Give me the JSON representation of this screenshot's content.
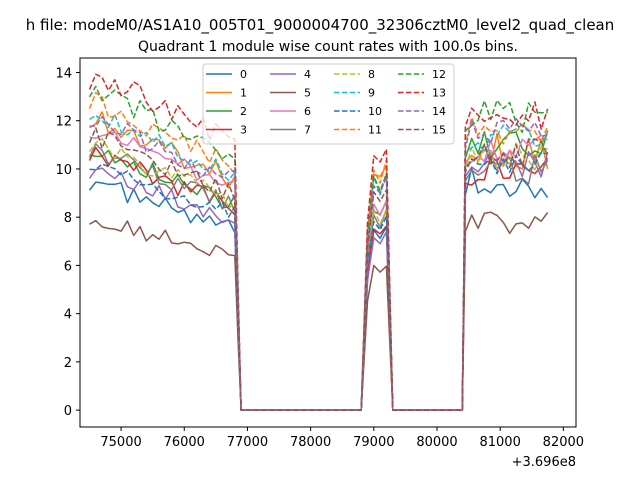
{
  "chart_data": {
    "type": "line",
    "suptitle": "h file: modeM0/AS1A10_005T01_9000004700_32306cztM0_level2_quad_clean",
    "title": "Quadrant 1 module wise count rates with 100.0s bins.",
    "xlabel": "",
    "ylabel": "",
    "x_offset_label": "+3.696e8",
    "xlim": [
      74350,
      82200
    ],
    "ylim": [
      -0.7,
      14.6
    ],
    "x_ticks": [
      75000,
      76000,
      77000,
      78000,
      79000,
      80000,
      81000,
      82000
    ],
    "x_tick_labels": [
      "75000",
      "76000",
      "77000",
      "78000",
      "79000",
      "80000",
      "81000",
      "82000"
    ],
    "y_ticks": [
      0,
      2,
      4,
      6,
      8,
      10,
      12,
      14
    ],
    "y_tick_labels": [
      "0",
      "2",
      "4",
      "6",
      "8",
      "10",
      "12",
      "14"
    ],
    "grid": false,
    "legend_position": "upper center",
    "legend_columns": 4,
    "segments": [
      [
        74500,
        76800
      ],
      [
        76900,
        78800
      ],
      [
        78850,
        79300
      ],
      [
        79400,
        80400
      ],
      [
        80450,
        81800
      ]
    ],
    "series": [
      {
        "name": "0",
        "color": "#1f77b4",
        "dash": "solid",
        "base": 7.8,
        "p2": 7.3,
        "p3": 9.4,
        "amp": 0.4
      },
      {
        "name": "1",
        "color": "#ff7f0e",
        "dash": "solid",
        "base": 10.0,
        "p2": 10.0,
        "p3": 10.8,
        "amp": 0.5
      },
      {
        "name": "2",
        "color": "#2ca02c",
        "dash": "solid",
        "base": 9.0,
        "p2": 8.4,
        "p3": 11.0,
        "amp": 0.4
      },
      {
        "name": "3",
        "color": "#d62728",
        "dash": "solid",
        "base": 8.8,
        "p2": 7.6,
        "p3": 9.9,
        "amp": 0.4
      },
      {
        "name": "4",
        "color": "#9467bd",
        "dash": "solid",
        "base": 8.2,
        "p2": 7.2,
        "p3": 10.2,
        "amp": 0.4
      },
      {
        "name": "5",
        "color": "#8c564b",
        "dash": "solid",
        "base": 6.6,
        "p2": 6.0,
        "p3": 7.8,
        "amp": 0.35
      },
      {
        "name": "6",
        "color": "#e377c2",
        "dash": "solid",
        "base": 9.6,
        "p2": 8.5,
        "p3": 10.8,
        "amp": 0.4
      },
      {
        "name": "7",
        "color": "#7f7f7f",
        "dash": "solid",
        "base": 8.9,
        "p2": 8.0,
        "p3": 10.0,
        "amp": 0.4
      },
      {
        "name": "8",
        "color": "#bcbd22",
        "dash": "dashed",
        "base": 9.1,
        "p2": 8.2,
        "p3": 10.5,
        "amp": 0.4
      },
      {
        "name": "9",
        "color": "#17becf",
        "dash": "dashed",
        "base": 10.2,
        "p2": 9.5,
        "p3": 11.3,
        "amp": 0.4
      },
      {
        "name": "10",
        "color": "#1f77b4",
        "dash": "dashed",
        "base": 8.5,
        "p2": 8.0,
        "p3": 10.4,
        "amp": 0.4
      },
      {
        "name": "11",
        "color": "#ff7f0e",
        "dash": "dashed",
        "base": 10.6,
        "p2": 10.1,
        "p3": 11.6,
        "amp": 0.45
      },
      {
        "name": "12",
        "color": "#2ca02c",
        "dash": "dashed",
        "base": 11.0,
        "p2": 9.8,
        "p3": 12.2,
        "amp": 0.45
      },
      {
        "name": "13",
        "color": "#d62728",
        "dash": "dashed",
        "base": 11.6,
        "p2": 10.6,
        "p3": 12.4,
        "amp": 0.5
      },
      {
        "name": "14",
        "color": "#9467bd",
        "dash": "dashed",
        "base": 10.0,
        "p2": 9.3,
        "p3": 11.4,
        "amp": 0.45
      },
      {
        "name": "15",
        "color": "#8c564b",
        "dash": "dashed",
        "base": 9.4,
        "p2": 9.0,
        "p3": 10.6,
        "amp": 0.4
      }
    ]
  }
}
